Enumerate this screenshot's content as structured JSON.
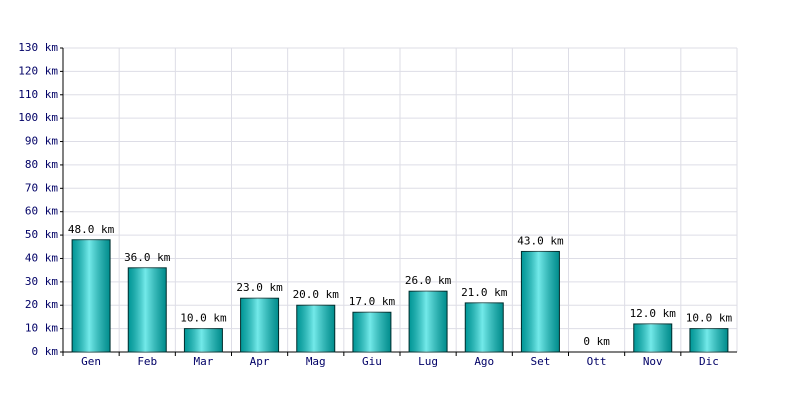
{
  "chart_data": {
    "type": "bar",
    "categories": [
      "Gen",
      "Feb",
      "Mar",
      "Apr",
      "Mag",
      "Giu",
      "Lug",
      "Ago",
      "Set",
      "Ott",
      "Nov",
      "Dic"
    ],
    "values": [
      48,
      36,
      10,
      23,
      20,
      17,
      26,
      21,
      43,
      0,
      12,
      10
    ],
    "value_labels": [
      "48.0 km",
      "36.0 km",
      "10.0 km",
      "23.0 km",
      "20.0 km",
      "17.0 km",
      "26.0 km",
      "21.0 km",
      "43.0 km",
      "0 km",
      "12.0 km",
      "10.0 km"
    ],
    "color": "#00d8d8",
    "ylim": [
      0,
      130
    ],
    "yticks": [
      {
        "value": 0,
        "label": "0 km"
      },
      {
        "value": 10,
        "label": "10 km"
      },
      {
        "value": 20,
        "label": "20 km"
      },
      {
        "value": 30,
        "label": "30 km"
      },
      {
        "value": 40,
        "label": "40 km"
      },
      {
        "value": 50,
        "label": "50 km"
      },
      {
        "value": 60,
        "label": "60 km"
      },
      {
        "value": 70,
        "label": "70 km"
      },
      {
        "value": 80,
        "label": "80 km"
      },
      {
        "value": 90,
        "label": "90 km"
      },
      {
        "value": 100,
        "label": "100 km"
      },
      {
        "value": 110,
        "label": "110 km"
      },
      {
        "value": 120,
        "label": "120 km"
      },
      {
        "value": 130,
        "label": "130 km"
      }
    ],
    "grid": true
  }
}
